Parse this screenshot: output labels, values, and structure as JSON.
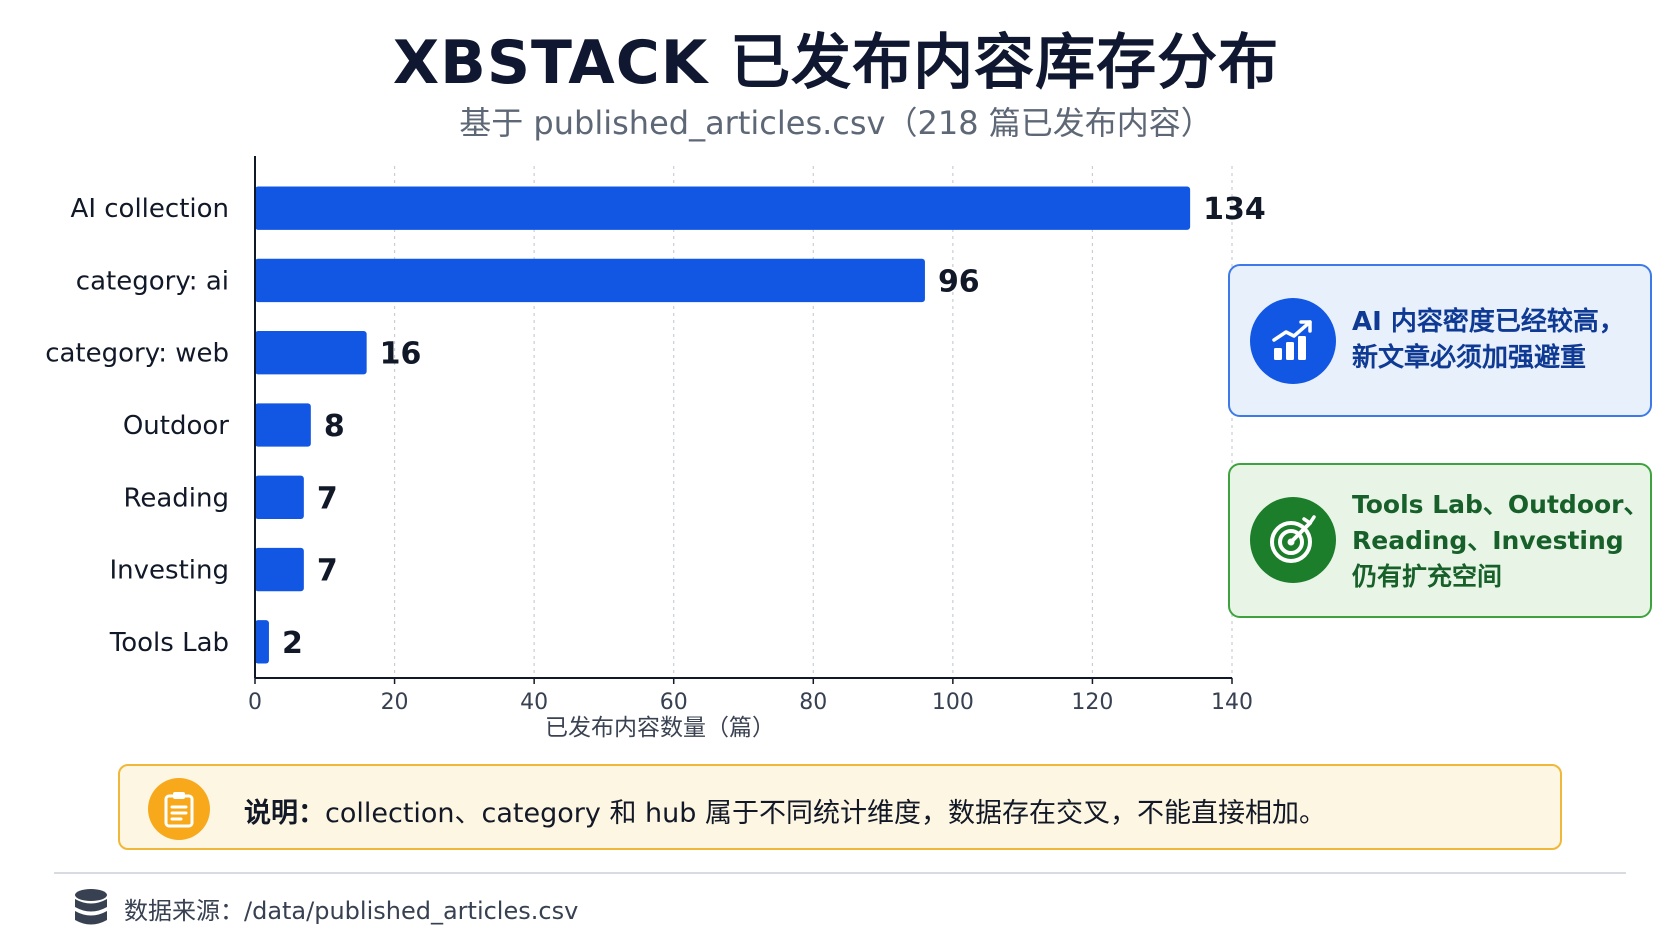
{
  "header": {
    "title": "XBSTACK 已发布内容库存分布",
    "subtitle": "基于 published_articles.csv（218 篇已发布内容）"
  },
  "chart_data": {
    "type": "bar",
    "orientation": "horizontal",
    "categories": [
      "AI collection",
      "category: ai",
      "category: web",
      "Outdoor",
      "Reading",
      "Investing",
      "Tools Lab"
    ],
    "values": [
      134,
      96,
      16,
      8,
      7,
      7,
      2
    ],
    "xlabel": "已发布内容数量（篇）",
    "ylabel": "",
    "xlim": [
      0,
      140
    ],
    "xticks": [
      0,
      20,
      40,
      60,
      80,
      100,
      120,
      140
    ],
    "grid": "vertical-dashed",
    "data_labels": true,
    "bar_color": "#1257e3"
  },
  "callouts": [
    {
      "icon": "bar-chart-growth-icon",
      "lines": [
        "AI 内容密度已经较高，",
        "新文章必须加强避重"
      ],
      "accent": "#1257e3"
    },
    {
      "icon": "target-icon",
      "lines": [
        "Tools Lab、Outdoor、",
        "Reading、Investing",
        "仍有扩充空间"
      ],
      "accent": "#1c7d2b"
    }
  ],
  "note": {
    "icon": "clipboard-icon",
    "label": "说明：",
    "text": "collection、category 和 hub 属于不同统计维度，数据存在交叉，不能直接相加。"
  },
  "source": {
    "icon": "database-icon",
    "text": "数据来源：/data/published_articles.csv"
  }
}
